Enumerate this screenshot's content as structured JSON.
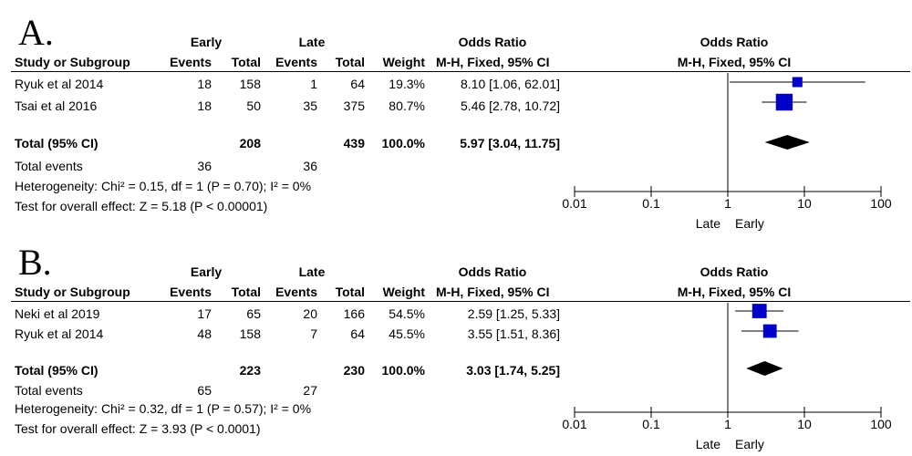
{
  "chart_data": [
    {
      "type": "forest",
      "panel_label": "A.",
      "headers": {
        "study": "Study or Subgroup",
        "group1": "Early",
        "group2": "Late",
        "events": "Events",
        "total": "Total",
        "weight": "Weight",
        "or_title": "Odds Ratio",
        "or_method": "M-H, Fixed, 95% CI"
      },
      "studies": [
        {
          "name": "Ryuk et al 2014",
          "early_events": "18",
          "early_total": "158",
          "late_events": "1",
          "late_total": "64",
          "weight": "19.3%",
          "ci_text": "8.10 [1.06, 62.01]",
          "or": 8.1,
          "lower": 1.06,
          "upper": 62.01
        },
        {
          "name": "Tsai et al 2016",
          "early_events": "18",
          "early_total": "50",
          "late_events": "35",
          "late_total": "375",
          "weight": "80.7%",
          "ci_text": "5.46 [2.78, 10.72]",
          "or": 5.46,
          "lower": 2.78,
          "upper": 10.72
        }
      ],
      "total": {
        "label": "Total (95% CI)",
        "early_total": "208",
        "late_total": "439",
        "weight": "100.0%",
        "ci_text": "5.97 [3.04, 11.75]",
        "or": 5.97,
        "lower": 3.04,
        "upper": 11.75
      },
      "total_events": {
        "label": "Total events",
        "early": "36",
        "late": "36"
      },
      "heterogeneity": "Heterogeneity: Chi² = 0.15, df = 1 (P = 0.70); I² = 0%",
      "overall_effect": "Test for overall effect: Z = 5.18 (P < 0.00001)",
      "axis": {
        "scale": "log",
        "ticks": [
          "0.01",
          "0.1",
          "1",
          "10",
          "100"
        ],
        "tick_values": [
          0.01,
          0.1,
          1,
          10,
          100
        ],
        "left_label": "Late",
        "right_label": "Early"
      }
    },
    {
      "type": "forest",
      "panel_label": "B.",
      "headers": {
        "study": "Study or Subgroup",
        "group1": "Early",
        "group2": "Late",
        "events": "Events",
        "total": "Total",
        "weight": "Weight",
        "or_title": "Odds Ratio",
        "or_method": "M-H, Fixed, 95% CI"
      },
      "studies": [
        {
          "name": "Neki et al 2019",
          "early_events": "17",
          "early_total": "65",
          "late_events": "20",
          "late_total": "166",
          "weight": "54.5%",
          "ci_text": "2.59 [1.25, 5.33]",
          "or": 2.59,
          "lower": 1.25,
          "upper": 5.33
        },
        {
          "name": "Ryuk et al 2014",
          "early_events": "48",
          "early_total": "158",
          "late_events": "7",
          "late_total": "64",
          "weight": "45.5%",
          "ci_text": "3.55 [1.51, 8.36]",
          "or": 3.55,
          "lower": 1.51,
          "upper": 8.36
        }
      ],
      "total": {
        "label": "Total (95% CI)",
        "early_total": "223",
        "late_total": "230",
        "weight": "100.0%",
        "ci_text": "3.03 [1.74, 5.25]",
        "or": 3.03,
        "lower": 1.74,
        "upper": 5.25
      },
      "total_events": {
        "label": "Total events",
        "early": "65",
        "late": "27"
      },
      "heterogeneity": "Heterogeneity: Chi² = 0.32, df = 1 (P = 0.57); I² = 0%",
      "overall_effect": "Test for overall effect: Z = 3.93 (P < 0.0001)",
      "axis": {
        "scale": "log",
        "ticks": [
          "0.01",
          "0.1",
          "1",
          "10",
          "100"
        ],
        "tick_values": [
          0.01,
          0.1,
          1,
          10,
          100
        ],
        "left_label": "Late",
        "right_label": "Early"
      }
    }
  ],
  "colors": {
    "marker": "#0000c8",
    "diamond": "#000000",
    "line": "#000000"
  }
}
